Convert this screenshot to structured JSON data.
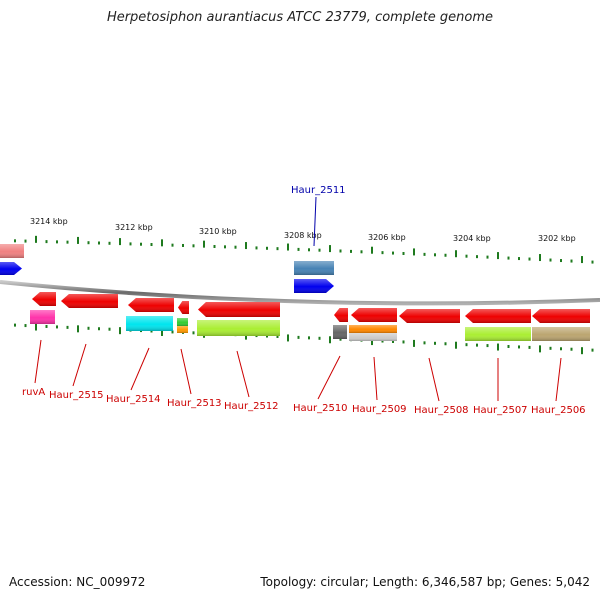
{
  "title": "Herpetosiphon aurantiacus ATCC 23779, complete genome",
  "footer": {
    "accession": "Accession: NC_009972",
    "topology": "Topology: circular; Length: 6,346,587 bp; Genes: 5,042"
  },
  "scale_labels": [
    "3214 kbp",
    "3212 kbp",
    "3210 kbp",
    "3208 kbp",
    "3206 kbp",
    "3204 kbp",
    "3202 kbp"
  ],
  "colors": {
    "backbone": "#8c8c8c",
    "tick": "#1e7a1e",
    "label_red": "#cc0000",
    "label_blue": "#0000aa"
  },
  "genes": [
    {
      "id": "g-left-pink",
      "label": "",
      "color": "#f08080"
    },
    {
      "id": "g-left-blue",
      "label": "",
      "color": "#0000ee"
    },
    {
      "id": "ruvA",
      "label": "ruvA",
      "color": "#ee0000"
    },
    {
      "id": "ruvA-magenta",
      "label": "",
      "color": "#ff33aa"
    },
    {
      "id": "Haur_2515",
      "label": "Haur_2515",
      "color": "#ee0000"
    },
    {
      "id": "Haur_2514",
      "label": "Haur_2514",
      "color": "#ee0000"
    },
    {
      "id": "Haur_2514-cyan",
      "label": "",
      "color": "#00e5ee"
    },
    {
      "id": "Haur_2513",
      "label": "Haur_2513",
      "color": "#ee0000"
    },
    {
      "id": "Haur_2513-green",
      "label": "",
      "color": "#33cc33"
    },
    {
      "id": "Haur_2513-orange",
      "label": "",
      "color": "#ff9900"
    },
    {
      "id": "Haur_2512",
      "label": "Haur_2512",
      "color": "#ee0000"
    },
    {
      "id": "Haur_2512-lime",
      "label": "",
      "color": "#aaee33"
    },
    {
      "id": "Haur_2511",
      "label": "Haur_2511",
      "color": "#4682b4"
    },
    {
      "id": "Haur_2511-blue",
      "label": "",
      "color": "#0000ee"
    },
    {
      "id": "Haur_2510",
      "label": "Haur_2510",
      "color": "#ee0000"
    },
    {
      "id": "Haur_2510-gray",
      "label": "",
      "color": "#666666"
    },
    {
      "id": "Haur_2509",
      "label": "Haur_2509",
      "color": "#ee0000"
    },
    {
      "id": "Haur_2509-orange",
      "label": "",
      "color": "#ff8800"
    },
    {
      "id": "Haur_2509-silver",
      "label": "",
      "color": "#cccccc"
    },
    {
      "id": "Haur_2508",
      "label": "Haur_2508",
      "color": "#ee0000"
    },
    {
      "id": "Haur_2507",
      "label": "Haur_2507",
      "color": "#ee0000"
    },
    {
      "id": "Haur_2507-lime",
      "label": "",
      "color": "#aaee33"
    },
    {
      "id": "Haur_2506",
      "label": "Haur_2506",
      "color": "#ee0000"
    },
    {
      "id": "Haur_2506-tan",
      "label": "",
      "color": "#bba570"
    }
  ]
}
